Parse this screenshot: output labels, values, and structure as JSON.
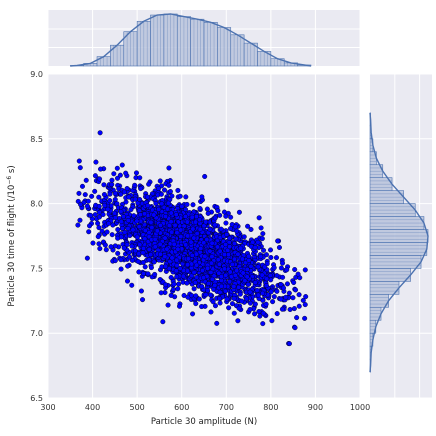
{
  "chart_data": {
    "type": "scatter",
    "subtype": "jointplot",
    "xlabel": "Particle 30 amplitude (N)",
    "ylabel": "Particle 30 time of flight (¹/⁰⁻⁶ s)",
    "ylabel_parts": {
      "prefix": "Particle 30 time of flight (",
      "base": "/10",
      "exponent": "−6",
      "suffix": " s)"
    },
    "xlim": [
      300,
      1000
    ],
    "ylim": [
      6.5,
      9.0
    ],
    "xticks": [
      "300",
      "400",
      "500",
      "600",
      "700",
      "800",
      "900",
      "1000"
    ],
    "yticks": [
      "6.5",
      "7.0",
      "7.5",
      "8.0",
      "8.5",
      "9.0"
    ],
    "grid": true,
    "background": "#eaeaf2",
    "grid_color": "#ffffff",
    "point_color": "#0000ff",
    "point_edge_color": "#000000",
    "hist_color": "#4c72b0",
    "hist_fill": "#b8c3dc",
    "scatter_cloud": {
      "x_mean": 615,
      "x_std": 100,
      "y_mean": 7.67,
      "y_std": 0.22,
      "correlation": -0.66,
      "x_range": [
        360,
        880
      ],
      "y_range": [
        6.8,
        8.57
      ]
    },
    "top_marginal": {
      "type": "histogram+kde",
      "x_bins": [
        350,
        380,
        410,
        440,
        470,
        500,
        530,
        560,
        590,
        620,
        650,
        680,
        710,
        740,
        770,
        800,
        830,
        860,
        890
      ],
      "density": [
        0.01,
        0.05,
        0.18,
        0.4,
        0.66,
        0.86,
        0.98,
        1.0,
        0.95,
        0.9,
        0.84,
        0.74,
        0.6,
        0.44,
        0.28,
        0.14,
        0.06,
        0.02
      ]
    },
    "right_marginal": {
      "type": "histogram+kde",
      "y_bins": [
        6.7,
        6.8,
        6.9,
        7.0,
        7.1,
        7.2,
        7.3,
        7.4,
        7.5,
        7.6,
        7.7,
        7.8,
        7.9,
        8.0,
        8.1,
        8.2,
        8.3,
        8.4,
        8.5,
        8.6,
        8.7
      ],
      "density": [
        0.01,
        0.02,
        0.05,
        0.1,
        0.19,
        0.32,
        0.5,
        0.7,
        0.88,
        0.98,
        1.0,
        0.93,
        0.78,
        0.58,
        0.38,
        0.22,
        0.11,
        0.05,
        0.02,
        0.01
      ]
    }
  }
}
